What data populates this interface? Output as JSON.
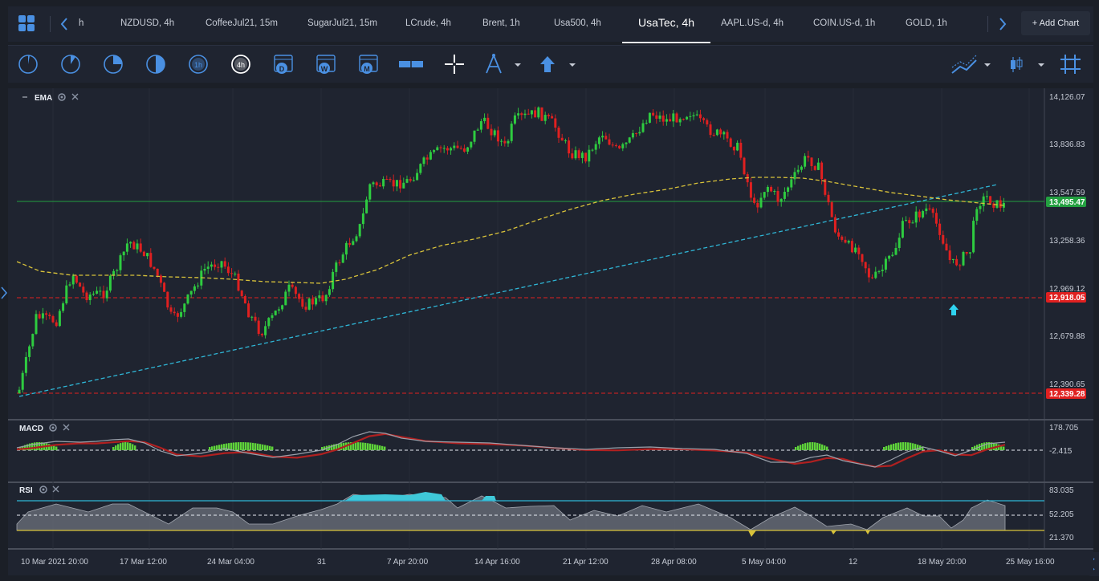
{
  "tabs": {
    "partial_first": "h",
    "items": [
      "NZDUSD, 4h",
      "CoffeeJul21, 15m",
      "SugarJul21, 15m",
      "LCrude, 4h",
      "Brent, 1h",
      "Usa500, 4h",
      "UsaTec, 4h",
      "AAPL.US-d, 4h",
      "COIN.US-d, 1h",
      "GOLD, 1h"
    ],
    "active": "UsaTec, 4h",
    "add_chart": "+ Add Chart"
  },
  "toolbar": {
    "timeframes": [
      "1m",
      "5m",
      "15m",
      "30m",
      "1h",
      "4h",
      "D",
      "W",
      "M"
    ],
    "active_timeframe": "4h"
  },
  "main_panel": {
    "indicator": "EMA",
    "price_labels": [
      "14,126.07",
      "13,836.83",
      "13,547.59",
      "13,258.36",
      "12,969.12",
      "12,679.88",
      "12,390.65"
    ],
    "current_price": "13,495.47",
    "level_upper": "12,918.05",
    "level_lower": "12,339.28"
  },
  "macd_panel": {
    "name": "MACD",
    "labels": [
      "178.705",
      "-2.415"
    ]
  },
  "rsi_panel": {
    "name": "RSI",
    "labels": [
      "83.035",
      "52.205",
      "21.370"
    ]
  },
  "time_axis": [
    "10 Mar 2021 20:00",
    "17 Mar 12:00",
    "24 Mar 04:00",
    "31",
    "7 Apr 20:00",
    "14 Apr 16:00",
    "21 Apr 12:00",
    "28 Apr 08:00",
    "5 May 04:00",
    "12",
    "18 May 20:00",
    "25 May 16:00"
  ],
  "colors": {
    "bull": "#2ecc40",
    "bear": "#e02020",
    "ema": "#d8c23a",
    "trend": "#2fb6d6",
    "hline_green": "#23a040",
    "level_red": "#e02020",
    "accent": "#4a90e2"
  }
}
